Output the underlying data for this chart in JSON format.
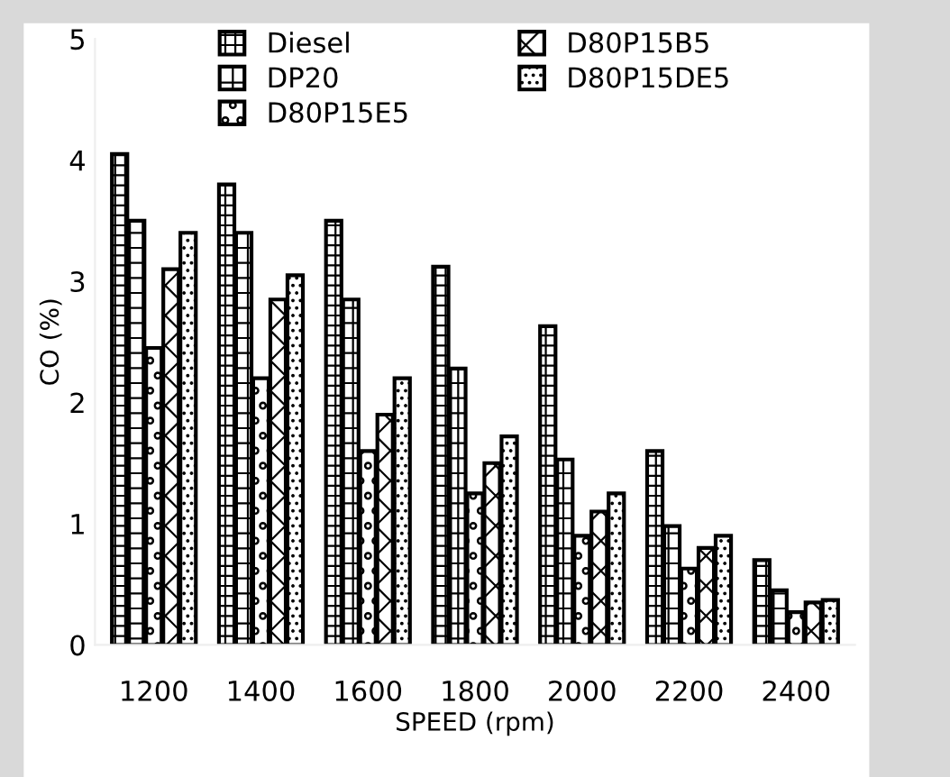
{
  "chart_data": {
    "type": "bar",
    "xlabel": "SPEED (rpm)",
    "ylabel": "CO (%)",
    "categories": [
      "1200",
      "1400",
      "1600",
      "1800",
      "2000",
      "2200",
      "2400"
    ],
    "series": [
      {
        "name": "Diesel",
        "color": "#000000",
        "values": [
          4.05,
          3.8,
          3.5,
          3.12,
          2.63,
          1.6,
          0.7
        ]
      },
      {
        "name": "DP20",
        "color": "#000000",
        "values": [
          3.5,
          3.4,
          2.85,
          2.28,
          1.53,
          0.98,
          0.45
        ]
      },
      {
        "name": "D80P15E5",
        "color": "#000000",
        "values": [
          2.45,
          2.2,
          1.6,
          1.25,
          0.9,
          0.63,
          0.27
        ]
      },
      {
        "name": "D80P15B5",
        "color": "#000000",
        "values": [
          3.1,
          2.85,
          1.9,
          1.5,
          1.1,
          0.8,
          0.35
        ]
      },
      {
        "name": "D80P15DE5",
        "color": "#000000",
        "values": [
          3.4,
          3.05,
          2.2,
          1.72,
          1.25,
          0.9,
          0.37
        ]
      }
    ],
    "ylim": [
      0,
      5
    ],
    "yticks": [
      0,
      1,
      2,
      3,
      4,
      5
    ],
    "grid": false,
    "legend": "top"
  }
}
